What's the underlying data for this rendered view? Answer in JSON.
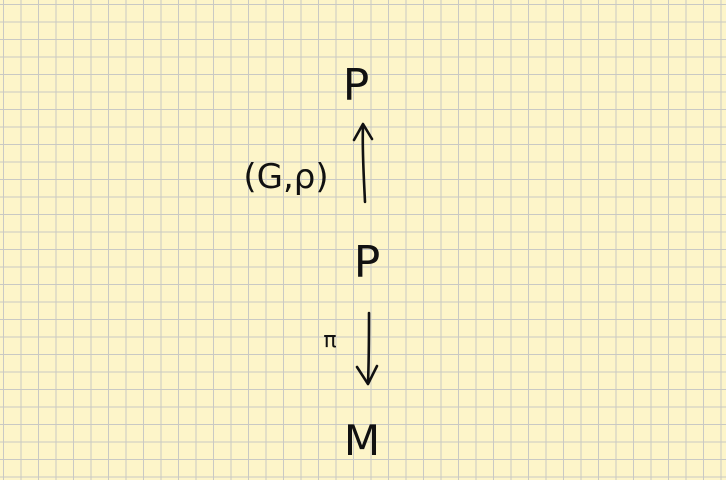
{
  "diagram": {
    "nodes": {
      "top": "P",
      "middle": "P",
      "bottom": "M"
    },
    "arrows": {
      "up_label": "(G,ρ)",
      "down_label": "π"
    }
  },
  "colors": {
    "paper": "#fdf5c9",
    "grid": "#c9c9c4",
    "ink": "#111111"
  }
}
